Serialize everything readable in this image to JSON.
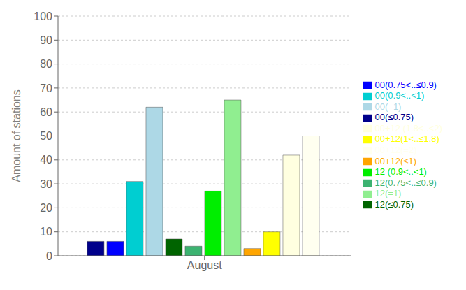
{
  "chart_data": {
    "type": "bar",
    "categories": [
      "August"
    ],
    "series": [
      {
        "name": "00(≤0.75)",
        "color": "#00008B",
        "values": [
          6
        ]
      },
      {
        "name": "00(0.75<..≤0.9)",
        "color": "#0000FF",
        "values": [
          6
        ]
      },
      {
        "name": "00(0.9<..<1)",
        "color": "#00CED1",
        "values": [
          31
        ]
      },
      {
        "name": "00(=1)",
        "color": "#ADD8E6",
        "values": [
          62
        ]
      },
      {
        "name": "12(≤0.75)",
        "color": "#006400",
        "values": [
          7
        ]
      },
      {
        "name": "12(0.75<..≤0.9)",
        "color": "#3CB371",
        "values": [
          4
        ]
      },
      {
        "name": "12 (0.9<..<1)",
        "color": "#00EE00",
        "values": [
          27
        ]
      },
      {
        "name": "12(=1)",
        "color": "#90EE90",
        "values": [
          65
        ]
      },
      {
        "name": "00+12(≤1)",
        "color": "#FFA500",
        "values": [
          3
        ]
      },
      {
        "name": "00+12(1<..≤1.8)",
        "color": "#FFFF00",
        "values": [
          10
        ]
      },
      {
        "name": "00+12 (1.8<..<2)",
        "color": "#FFFFE0",
        "values": [
          42
        ]
      },
      {
        "name": "00+12(=2)",
        "color": "#FFFFF0",
        "values": [
          50
        ]
      }
    ],
    "ylabel": "Amount of stations",
    "ylim": [
      0,
      100
    ],
    "yticks": [
      0,
      10,
      20,
      30,
      40,
      50,
      60,
      70,
      80,
      90,
      100
    ],
    "grid": true,
    "legend": "right"
  }
}
